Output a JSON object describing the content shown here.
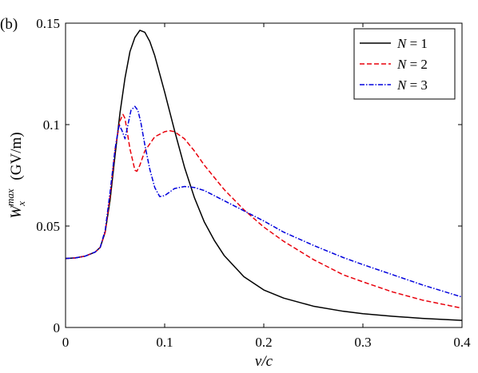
{
  "panel_label": "(b)",
  "chart_data": {
    "type": "line",
    "xlabel": "v/c",
    "ylabel": "W_x^max (GV/m)",
    "ylabel_parts": {
      "main": "W",
      "sub": "x",
      "sup": "max",
      "unit": "(GV/m)"
    },
    "xlim": [
      0,
      0.4
    ],
    "ylim": [
      0,
      0.15
    ],
    "x_ticks": [
      0,
      0.1,
      0.2,
      0.3,
      0.4
    ],
    "x_tick_labels": [
      "0",
      "0.1",
      "0.2",
      "0.3",
      "0.4"
    ],
    "y_ticks": [
      0,
      0.05,
      0.1,
      0.15
    ],
    "y_tick_labels": [
      "0",
      "0.05",
      "0.1",
      "0.15"
    ],
    "grid": false,
    "legend_position": "top-right",
    "series": [
      {
        "name": "N = 1",
        "name_parts": [
          "N",
          "= 1"
        ],
        "color": "#000000",
        "dash": "solid",
        "x": [
          0,
          0.01,
          0.02,
          0.03,
          0.035,
          0.04,
          0.045,
          0.05,
          0.055,
          0.06,
          0.065,
          0.07,
          0.075,
          0.08,
          0.085,
          0.09,
          0.1,
          0.11,
          0.12,
          0.13,
          0.14,
          0.15,
          0.16,
          0.18,
          0.2,
          0.22,
          0.25,
          0.28,
          0.3,
          0.33,
          0.36,
          0.4
        ],
        "y": [
          0.034,
          0.0343,
          0.0352,
          0.0372,
          0.0395,
          0.047,
          0.063,
          0.085,
          0.106,
          0.123,
          0.136,
          0.143,
          0.1465,
          0.1455,
          0.141,
          0.134,
          0.116,
          0.097,
          0.079,
          0.064,
          0.052,
          0.043,
          0.0355,
          0.025,
          0.0185,
          0.0145,
          0.0105,
          0.008,
          0.0068,
          0.0055,
          0.0045,
          0.0035
        ]
      },
      {
        "name": "N = 2",
        "name_parts": [
          "N",
          "= 2"
        ],
        "color": "#e8000b",
        "dash": "dashed",
        "x": [
          0,
          0.01,
          0.02,
          0.03,
          0.035,
          0.04,
          0.045,
          0.05,
          0.055,
          0.058,
          0.06,
          0.065,
          0.07,
          0.072,
          0.075,
          0.08,
          0.09,
          0.1,
          0.105,
          0.11,
          0.12,
          0.13,
          0.14,
          0.16,
          0.18,
          0.2,
          0.22,
          0.25,
          0.28,
          0.3,
          0.33,
          0.36,
          0.4
        ],
        "y": [
          0.034,
          0.0343,
          0.0352,
          0.0372,
          0.0395,
          0.047,
          0.065,
          0.088,
          0.102,
          0.105,
          0.103,
          0.088,
          0.0775,
          0.077,
          0.08,
          0.087,
          0.094,
          0.0965,
          0.097,
          0.0965,
          0.093,
          0.087,
          0.08,
          0.068,
          0.058,
          0.0495,
          0.0425,
          0.0335,
          0.026,
          0.0225,
          0.0175,
          0.0135,
          0.0095
        ]
      },
      {
        "name": "N = 3",
        "name_parts": [
          "N",
          "= 3"
        ],
        "color": "#0000dd",
        "dash": "dashdot",
        "x": [
          0,
          0.01,
          0.02,
          0.03,
          0.035,
          0.04,
          0.045,
          0.05,
          0.054,
          0.057,
          0.06,
          0.063,
          0.066,
          0.07,
          0.073,
          0.076,
          0.08,
          0.085,
          0.09,
          0.095,
          0.1,
          0.11,
          0.12,
          0.13,
          0.14,
          0.16,
          0.18,
          0.2,
          0.22,
          0.25,
          0.28,
          0.3,
          0.33,
          0.36,
          0.4
        ],
        "y": [
          0.034,
          0.0343,
          0.0352,
          0.0372,
          0.0395,
          0.048,
          0.067,
          0.088,
          0.1,
          0.097,
          0.093,
          0.1,
          0.107,
          0.109,
          0.107,
          0.101,
          0.09,
          0.078,
          0.069,
          0.0645,
          0.065,
          0.0685,
          0.0695,
          0.069,
          0.0675,
          0.0625,
          0.0575,
          0.0525,
          0.047,
          0.0405,
          0.0345,
          0.031,
          0.026,
          0.021,
          0.015
        ]
      }
    ]
  }
}
